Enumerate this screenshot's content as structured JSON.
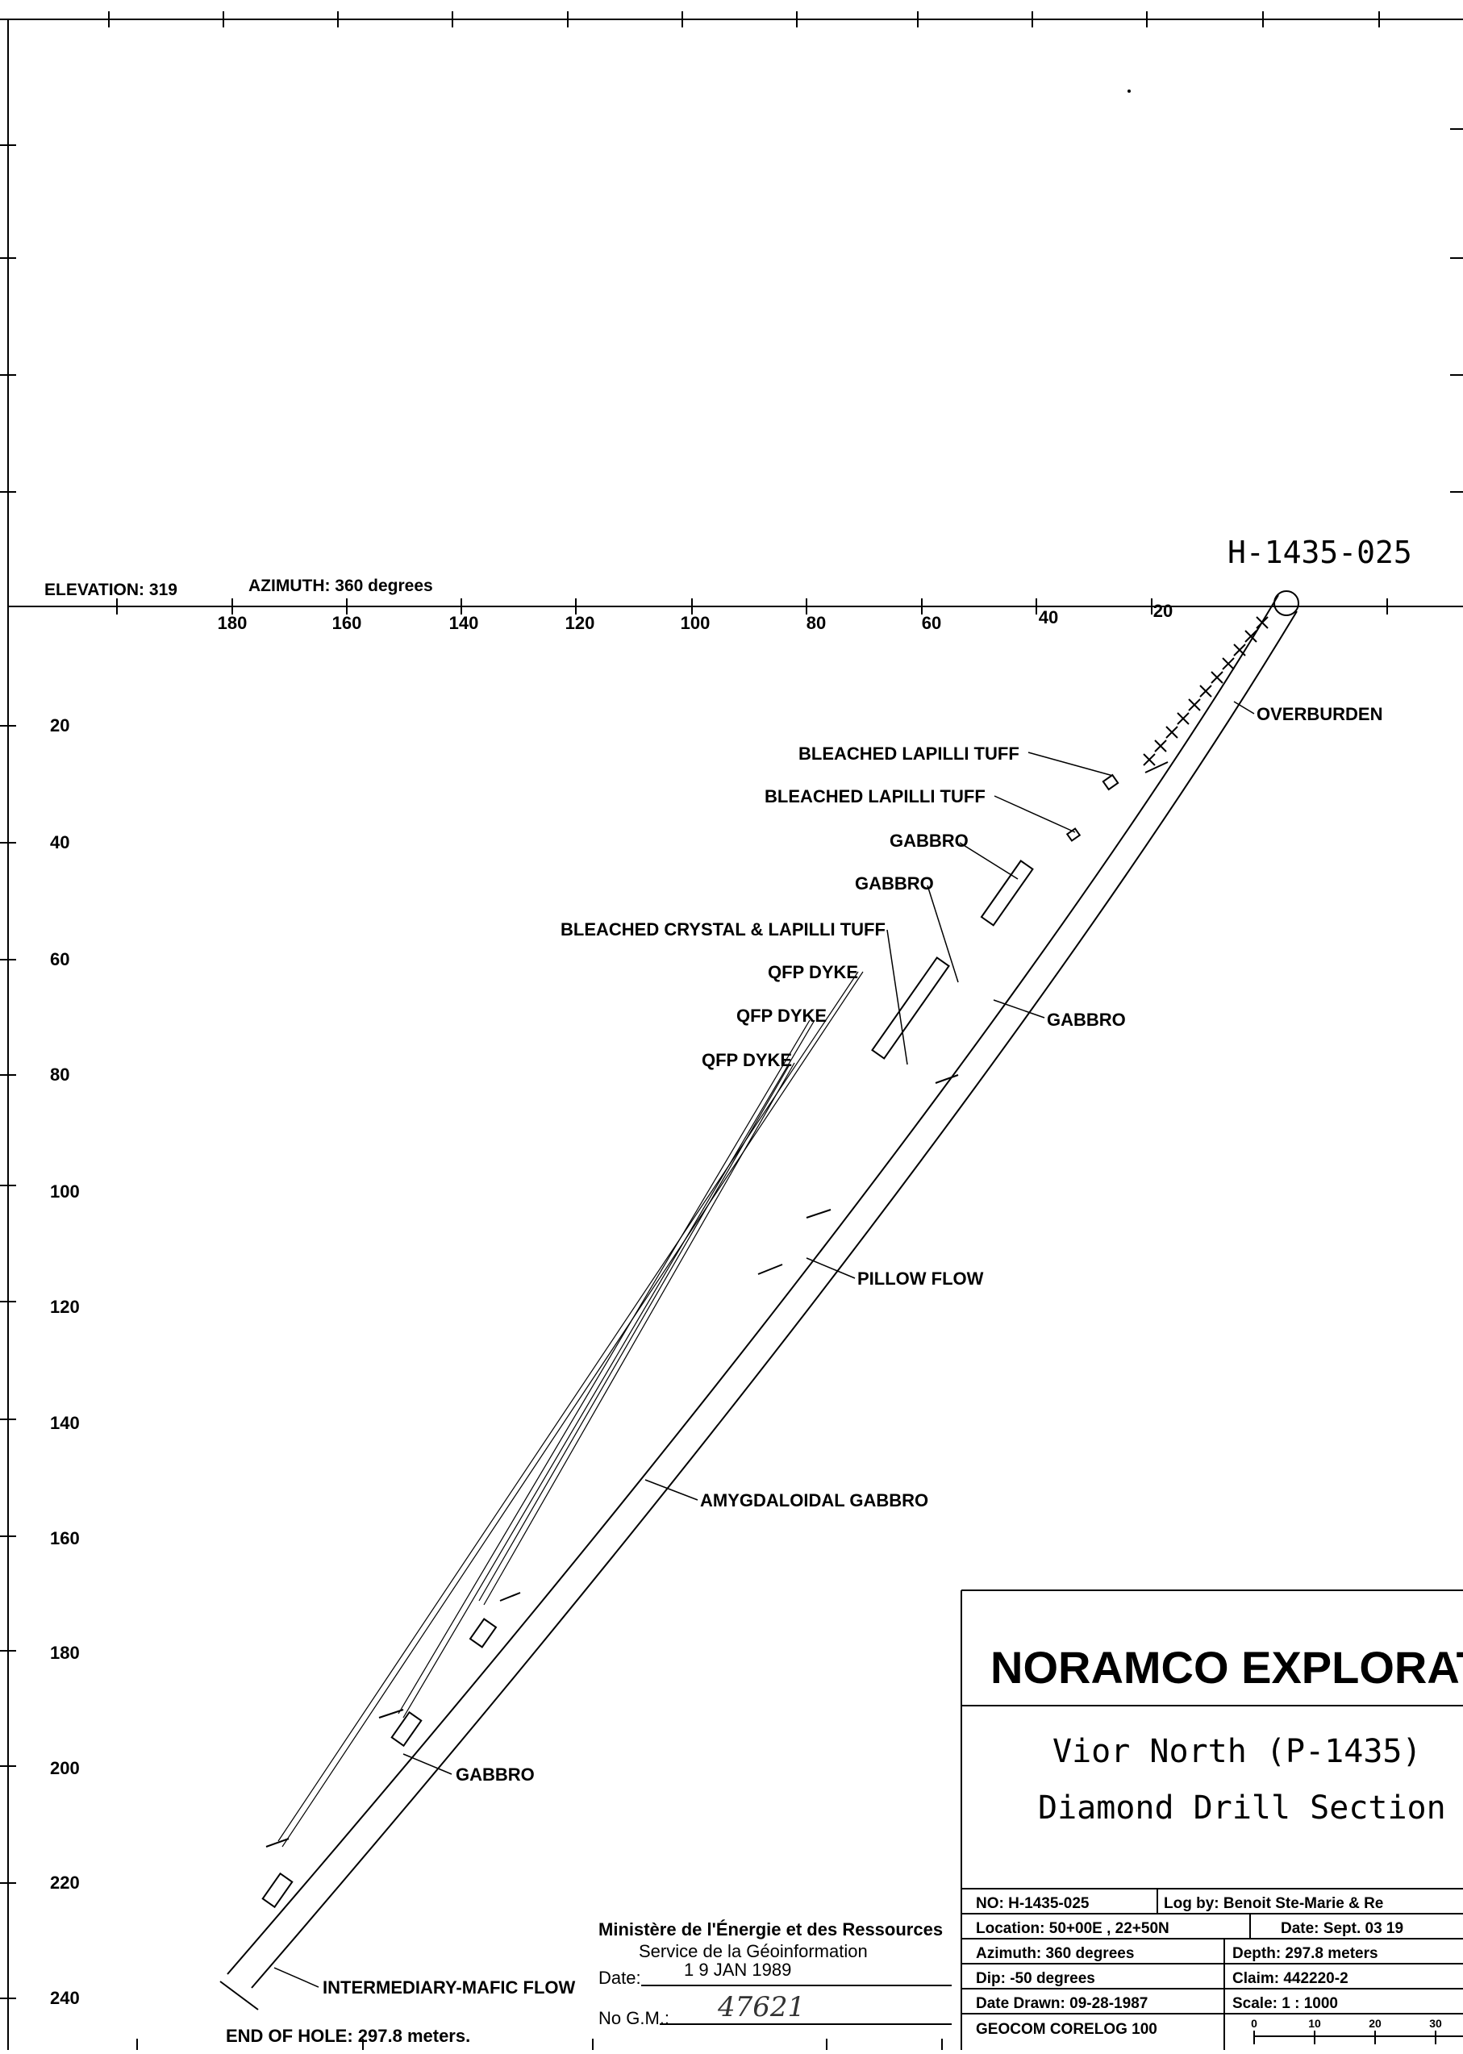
{
  "hole_id": "H-1435-025",
  "header": {
    "elevation": "ELEVATION: 319",
    "azimuth": "AZIMUTH: 360 degrees"
  },
  "horizontal_ticks": [
    "180",
    "160",
    "140",
    "120",
    "100",
    "80",
    "60",
    "40",
    "20"
  ],
  "depth_ticks": [
    "20",
    "40",
    "60",
    "80",
    "100",
    "120",
    "140",
    "160",
    "180",
    "200",
    "220",
    "240"
  ],
  "units": [
    "OVERBURDEN",
    "BLEACHED LAPILLI TUFF",
    "BLEACHED LAPILLI TUFF",
    "GABBRO",
    "GABBRO",
    "BLEACHED CRYSTAL & LAPILLI TUFF",
    "QFP DYKE",
    "QFP DYKE",
    "QFP DYKE",
    "GABBRO",
    "PILLOW FLOW",
    "AMYGDALOIDAL GABBRO",
    "GABBRO",
    "INTERMEDIARY-MAFIC FLOW"
  ],
  "end_of_hole": "END OF HOLE:  297.8 meters.",
  "stamp": {
    "ministry": "Ministère de l'Énergie et des Ressources",
    "service": "Service de la Géoinformation",
    "date_label": "Date:",
    "date_value": "1 9  JAN  1989",
    "gm_label": "No G.M.:",
    "gm_value": "47621"
  },
  "title_block": {
    "company": "NORAMCO EXPLORATION",
    "project": "Vior North (P-1435)",
    "subtitle": "Diamond Drill Section",
    "no": "NO: H-1435-025",
    "log_by": "Log by: Benoit Ste-Marie & Re",
    "location": "Location: 50+00E , 22+50N",
    "date": "Date: Sept. 03 19",
    "azimuth": "Azimuth: 360 degrees",
    "depth": "Depth: 297.8 meters",
    "dip": "Dip: -50 degrees",
    "claim": "Claim: 442220-2",
    "date_drawn": "Date Drawn: 09-28-1987",
    "scale": "Scale: 1 : 1000",
    "software": "GEOCOM CORELOG 100",
    "scale_bar_ticks": [
      "0",
      "10",
      "20",
      "30"
    ]
  }
}
